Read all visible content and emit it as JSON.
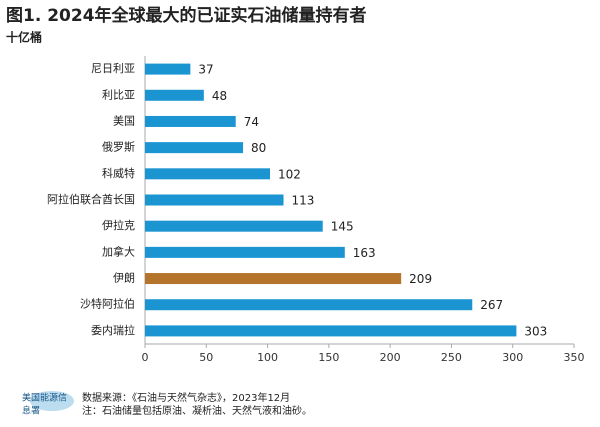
{
  "chart_data": {
    "type": "bar",
    "orientation": "horizontal",
    "title": "图1. 2024年全球最大的已证实石油储量持有者",
    "subtitle": "十亿桶",
    "categories": [
      "尼日利亚",
      "利比亚",
      "美国",
      "俄罗斯",
      "科威特",
      "阿拉伯联合酋长国",
      "伊拉克",
      "加拿大",
      "伊朗",
      "沙特阿拉伯",
      "委内瑞拉"
    ],
    "values": [
      37,
      48,
      74,
      80,
      102,
      113,
      145,
      163,
      209,
      267,
      303
    ],
    "colors": [
      "#1a95d2",
      "#1a95d2",
      "#1a95d2",
      "#1a95d2",
      "#1a95d2",
      "#1a95d2",
      "#1a95d2",
      "#1a95d2",
      "#b5742c",
      "#1a95d2",
      "#1a95d2"
    ],
    "xlim": [
      0,
      350
    ],
    "xticks": [
      0,
      50,
      100,
      150,
      200,
      250,
      300,
      350
    ],
    "source": "数据来源：《石油与天然气杂志》，2023年12月",
    "note": "注：石油储量包括原油、凝析油、天然气液和油砂。",
    "logo": [
      "美国能源信",
      "息署"
    ]
  }
}
